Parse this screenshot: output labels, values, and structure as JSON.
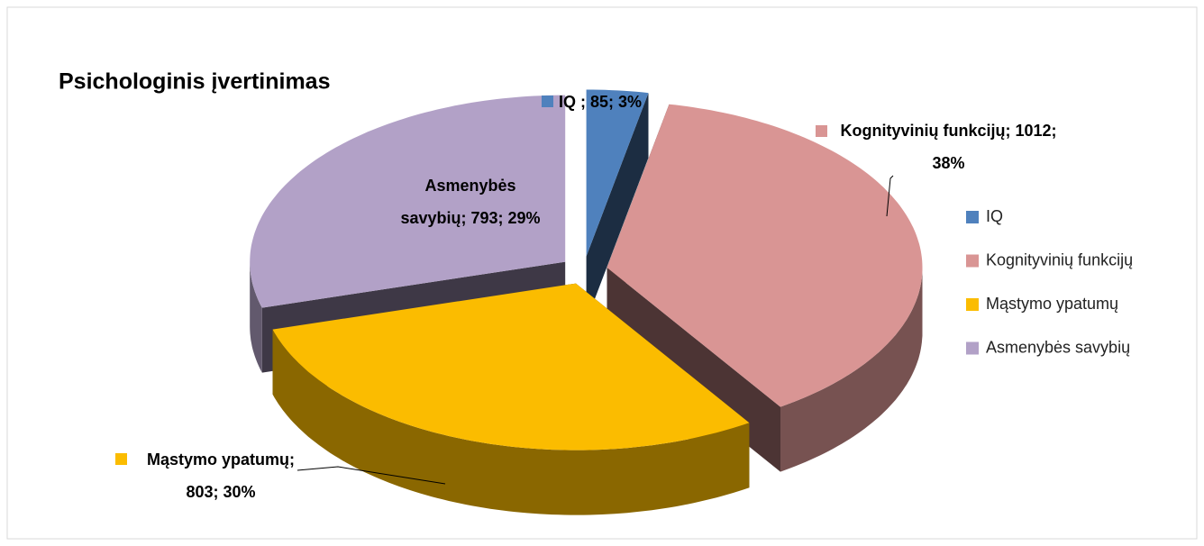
{
  "chart_data": {
    "type": "pie",
    "title": "Psichologinis įvertinimas",
    "categories": [
      "IQ",
      "Kognityvinių funkcijų",
      "Mąstymo ypatumų",
      "Asmenybės savybių"
    ],
    "values": [
      85,
      1012,
      803,
      793
    ],
    "value_labels": [
      "IQ ; 85; 3%",
      "Kognityvinių funkcijų; 1012; 38%",
      "Mąstymo ypatumų; 803; 30%",
      "Asmenybės savybių; 793; 29%"
    ],
    "colors": [
      "#4f81bd",
      "#d99594",
      "#fbbc00",
      "#b2a1c7"
    ],
    "legend": "right"
  }
}
